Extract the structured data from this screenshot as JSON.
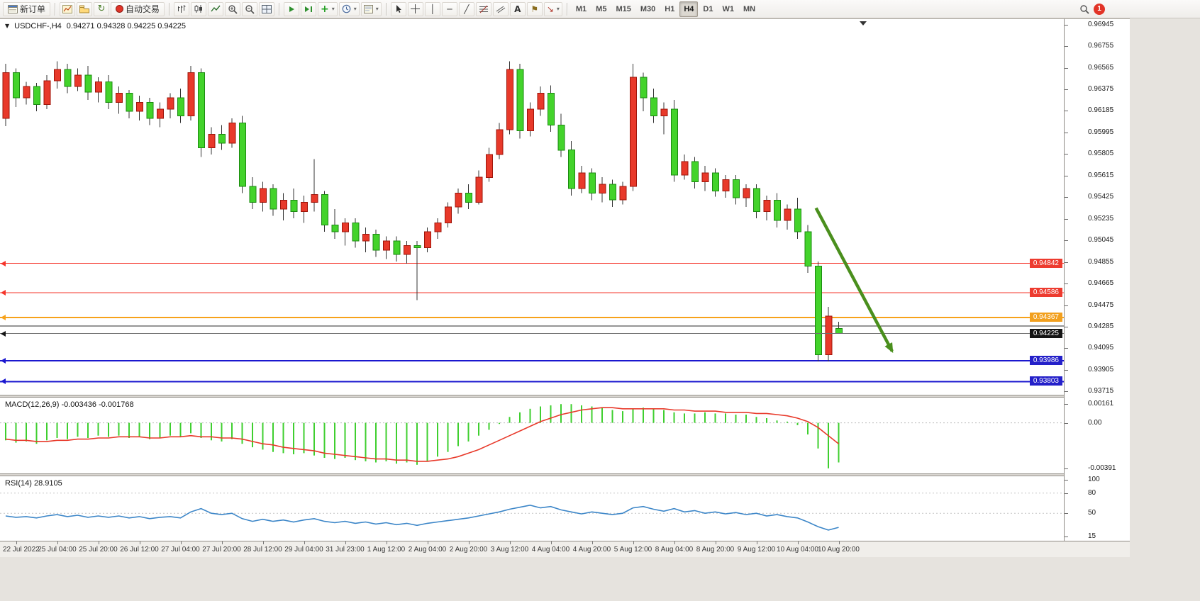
{
  "toolbar": {
    "new_order_label": "新订单",
    "auto_trading_label": "自动交易",
    "timeframes": [
      "M1",
      "M5",
      "M15",
      "M30",
      "H1",
      "H4",
      "D1",
      "W1",
      "MN"
    ],
    "active_timeframe": "H4",
    "notification_count": "1"
  },
  "icons": {
    "refresh": "↻",
    "indicators_plus": "+",
    "vertical_line": "│",
    "horizontal_line": "─",
    "trendline": "╱",
    "text_tool": "A",
    "text_label": "⚑",
    "arrows_tool": "↘",
    "dropdown": "▾",
    "collapse_arrow": "▼"
  },
  "chart_data": {
    "type": "candlestick",
    "title": "USDCHF-,H4",
    "ohlc_text": "0.94271 0.94328 0.94225 0.94225",
    "open": 0.94271,
    "high": 0.94328,
    "low": 0.94225,
    "close": 0.94225,
    "colors": {
      "up": "#e8392a",
      "up_border": "#9e150a",
      "down": "#43d32b",
      "down_border": "#1b8a10",
      "wick": "#333333",
      "background": "#ffffff"
    },
    "price_axis": {
      "max": 0.9698,
      "min": 0.9368,
      "tick_labels": [
        "0.96945",
        "0.96755",
        "0.96565",
        "0.96375",
        "0.96185",
        "0.95995",
        "0.95805",
        "0.95615",
        "0.95425",
        "0.95235",
        "0.95045",
        "0.94855",
        "0.94665",
        "0.94475",
        "0.94285",
        "0.94095",
        "0.93905",
        "0.93715"
      ]
    },
    "bid": {
      "value": 0.94225,
      "label": "0.94225",
      "line_color": "#6f6f6f",
      "box_color": "#151515"
    },
    "levels": [
      {
        "value": 0.94842,
        "label": "0.94842",
        "color": "#f5342a",
        "box_color": "#ed3b2f",
        "width": 1
      },
      {
        "value": 0.94586,
        "label": "0.94586",
        "color": "#f5342a",
        "box_color": "#ed3b2f",
        "width": 1
      },
      {
        "value": 0.94367,
        "label": "0.94367",
        "color": "#f7a21b",
        "box_color": "#f2a01e",
        "width": 2
      },
      {
        "value": 0.9429,
        "label": "",
        "color": "#2b2b2b",
        "box_color": "#2b2b2b",
        "width": 1
      },
      {
        "value": 0.93986,
        "label": "0.93986",
        "color": "#1a17cf",
        "box_color": "#2420c9",
        "width": 2
      },
      {
        "value": 0.93803,
        "label": "0.93803",
        "color": "#1a17cf",
        "box_color": "#2420c9",
        "width": 2
      }
    ],
    "trend_arrow": {
      "from_index": 78.8,
      "from_price": 0.9533,
      "to_index": 86.2,
      "to_price": 0.9407,
      "color": "#4a8f1d"
    },
    "time_labels": [
      "22 Jul 2022",
      "25 Jul 04:00",
      "25 Jul 20:00",
      "26 Jul 12:00",
      "27 Jul 04:00",
      "27 Jul 20:00",
      "28 Jul 12:00",
      "29 Jul 04:00",
      "31 Jul 23:00",
      "1 Aug 12:00",
      "2 Aug 04:00",
      "2 Aug 20:00",
      "3 Aug 12:00",
      "4 Aug 04:00",
      "4 Aug 20:00",
      "5 Aug 12:00",
      "8 Aug 04:00",
      "8 Aug 20:00",
      "9 Aug 12:00",
      "10 Aug 04:00",
      "10 Aug 20:00"
    ],
    "candles": [
      [
        0.9612,
        0.966,
        0.9605,
        0.9652
      ],
      [
        0.9652,
        0.9656,
        0.9622,
        0.963
      ],
      [
        0.963,
        0.9644,
        0.9624,
        0.964
      ],
      [
        0.964,
        0.9643,
        0.9618,
        0.9624
      ],
      [
        0.9624,
        0.965,
        0.962,
        0.9645
      ],
      [
        0.9645,
        0.9662,
        0.9638,
        0.9655
      ],
      [
        0.9655,
        0.966,
        0.9634,
        0.964
      ],
      [
        0.964,
        0.9656,
        0.9636,
        0.965
      ],
      [
        0.965,
        0.9658,
        0.9628,
        0.9635
      ],
      [
        0.9635,
        0.9648,
        0.9626,
        0.9644
      ],
      [
        0.9644,
        0.965,
        0.962,
        0.9626
      ],
      [
        0.9626,
        0.964,
        0.9616,
        0.9634
      ],
      [
        0.9634,
        0.9637,
        0.9612,
        0.9618
      ],
      [
        0.9618,
        0.9632,
        0.961,
        0.9626
      ],
      [
        0.9626,
        0.963,
        0.9606,
        0.9612
      ],
      [
        0.9612,
        0.9626,
        0.9604,
        0.962
      ],
      [
        0.962,
        0.9634,
        0.9612,
        0.963
      ],
      [
        0.963,
        0.9638,
        0.9608,
        0.9614
      ],
      [
        0.9614,
        0.9658,
        0.961,
        0.9652
      ],
      [
        0.9652,
        0.9656,
        0.9578,
        0.9586
      ],
      [
        0.9586,
        0.9604,
        0.958,
        0.9598
      ],
      [
        0.9598,
        0.9606,
        0.9584,
        0.959
      ],
      [
        0.959,
        0.9612,
        0.9586,
        0.9608
      ],
      [
        0.9608,
        0.9614,
        0.9546,
        0.9552
      ],
      [
        0.9552,
        0.956,
        0.9532,
        0.9538
      ],
      [
        0.9538,
        0.9556,
        0.953,
        0.955
      ],
      [
        0.955,
        0.9554,
        0.9526,
        0.9532
      ],
      [
        0.9532,
        0.9546,
        0.9522,
        0.954
      ],
      [
        0.954,
        0.955,
        0.9524,
        0.953
      ],
      [
        0.953,
        0.9544,
        0.952,
        0.9538
      ],
      [
        0.9538,
        0.9576,
        0.953,
        0.9545
      ],
      [
        0.9545,
        0.9548,
        0.9512,
        0.9518
      ],
      [
        0.9518,
        0.9532,
        0.9506,
        0.9512
      ],
      [
        0.9512,
        0.9524,
        0.95,
        0.952
      ],
      [
        0.952,
        0.9524,
        0.9498,
        0.9504
      ],
      [
        0.9504,
        0.9516,
        0.9494,
        0.951
      ],
      [
        0.951,
        0.9514,
        0.949,
        0.9496
      ],
      [
        0.9496,
        0.9508,
        0.9488,
        0.9504
      ],
      [
        0.9504,
        0.9508,
        0.9486,
        0.9492
      ],
      [
        0.9492,
        0.9504,
        0.9484,
        0.95
      ],
      [
        0.95,
        0.9504,
        0.9452,
        0.9498
      ],
      [
        0.9498,
        0.9516,
        0.9494,
        0.9512
      ],
      [
        0.9512,
        0.9524,
        0.9506,
        0.952
      ],
      [
        0.952,
        0.9538,
        0.9516,
        0.9534
      ],
      [
        0.9534,
        0.955,
        0.9528,
        0.9546
      ],
      [
        0.9546,
        0.9554,
        0.9532,
        0.9538
      ],
      [
        0.9538,
        0.9566,
        0.9536,
        0.956
      ],
      [
        0.956,
        0.9586,
        0.9556,
        0.958
      ],
      [
        0.958,
        0.9608,
        0.9576,
        0.9602
      ],
      [
        0.9602,
        0.9662,
        0.9598,
        0.9655
      ],
      [
        0.9655,
        0.966,
        0.9594,
        0.9601
      ],
      [
        0.9601,
        0.9626,
        0.9596,
        0.962
      ],
      [
        0.962,
        0.964,
        0.9614,
        0.9634
      ],
      [
        0.9634,
        0.9641,
        0.96,
        0.9606
      ],
      [
        0.9606,
        0.9616,
        0.9578,
        0.9584
      ],
      [
        0.9584,
        0.9592,
        0.9544,
        0.955
      ],
      [
        0.955,
        0.957,
        0.9546,
        0.9564
      ],
      [
        0.9564,
        0.9568,
        0.954,
        0.9546
      ],
      [
        0.9546,
        0.956,
        0.9538,
        0.9554
      ],
      [
        0.9554,
        0.9558,
        0.9534,
        0.954
      ],
      [
        0.954,
        0.9556,
        0.9536,
        0.9552
      ],
      [
        0.9552,
        0.966,
        0.9548,
        0.9648
      ],
      [
        0.9648,
        0.9652,
        0.9618,
        0.963
      ],
      [
        0.963,
        0.9638,
        0.9608,
        0.9614
      ],
      [
        0.9614,
        0.9626,
        0.9598,
        0.962
      ],
      [
        0.962,
        0.9628,
        0.9556,
        0.9562
      ],
      [
        0.9562,
        0.958,
        0.9558,
        0.9574
      ],
      [
        0.9574,
        0.9578,
        0.955,
        0.9556
      ],
      [
        0.9556,
        0.957,
        0.9548,
        0.9564
      ],
      [
        0.9564,
        0.9568,
        0.9543,
        0.9548
      ],
      [
        0.9548,
        0.9562,
        0.9542,
        0.9558
      ],
      [
        0.9558,
        0.9562,
        0.9536,
        0.9542
      ],
      [
        0.9542,
        0.9554,
        0.9534,
        0.955
      ],
      [
        0.955,
        0.9554,
        0.9524,
        0.953
      ],
      [
        0.953,
        0.9544,
        0.9522,
        0.954
      ],
      [
        0.954,
        0.9546,
        0.9516,
        0.9522
      ],
      [
        0.9522,
        0.9536,
        0.9514,
        0.9532
      ],
      [
        0.9532,
        0.9542,
        0.9506,
        0.9512
      ],
      [
        0.9512,
        0.9518,
        0.9476,
        0.9482
      ],
      [
        0.9482,
        0.9486,
        0.9398,
        0.9404
      ],
      [
        0.9404,
        0.9446,
        0.9398,
        0.9438
      ],
      [
        0.94271,
        0.94328,
        0.94225,
        0.94225
      ]
    ],
    "macd": {
      "label_text": "MACD(12,26,9) -0.003436 -0.001768",
      "current": -0.003436,
      "signal_current": -0.001768,
      "colors": {
        "histogram": "#3fcf2f",
        "signal": "#e8392a"
      },
      "scale": {
        "max": 0.0021,
        "min": -0.0044,
        "labels": [
          {
            "text": "0.00161",
            "value": 0.00161
          },
          {
            "text": "0.00",
            "value": 0
          },
          {
            "text": "-0.00391",
            "value": -0.00391
          }
        ]
      },
      "values": [
        -0.0015,
        -0.0017,
        -0.0016,
        -0.0018,
        -0.0015,
        -0.0013,
        -0.0014,
        -0.0012,
        -0.0013,
        -0.0011,
        -0.0012,
        -0.0011,
        -0.0013,
        -0.0012,
        -0.0014,
        -0.0013,
        -0.0011,
        -0.0012,
        -0.0009,
        -0.0013,
        -0.0015,
        -0.0016,
        -0.0014,
        -0.0018,
        -0.0021,
        -0.0023,
        -0.0025,
        -0.0026,
        -0.0027,
        -0.0026,
        -0.0028,
        -0.003,
        -0.0031,
        -0.003,
        -0.0032,
        -0.0033,
        -0.0034,
        -0.0033,
        -0.0035,
        -0.0034,
        -0.0036,
        -0.0033,
        -0.0029,
        -0.0025,
        -0.002,
        -0.0016,
        -0.0011,
        -0.0006,
        -0.0001,
        0.0005,
        0.0009,
        0.0012,
        0.0014,
        0.0015,
        0.0016,
        0.0016,
        0.0015,
        0.0014,
        0.0013,
        0.0011,
        0.001,
        0.0012,
        0.0013,
        0.0012,
        0.0011,
        0.0009,
        0.0008,
        0.0008,
        0.0009,
        0.0008,
        0.0008,
        0.0007,
        0.0007,
        0.0005,
        0.0004,
        0.0002,
        0.0001,
        -0.0002,
        -0.001,
        -0.0022,
        -0.0039,
        -0.0034
      ],
      "signal": [
        -0.0014,
        -0.0015,
        -0.0015,
        -0.0016,
        -0.0016,
        -0.0015,
        -0.0015,
        -0.0014,
        -0.0014,
        -0.0013,
        -0.0013,
        -0.0012,
        -0.0012,
        -0.0012,
        -0.0013,
        -0.0013,
        -0.0012,
        -0.0012,
        -0.0011,
        -0.0012,
        -0.0012,
        -0.0013,
        -0.0013,
        -0.0014,
        -0.0016,
        -0.0018,
        -0.0019,
        -0.0021,
        -0.0022,
        -0.0023,
        -0.0024,
        -0.0026,
        -0.0027,
        -0.0028,
        -0.0029,
        -0.003,
        -0.0031,
        -0.0031,
        -0.0032,
        -0.0032,
        -0.0033,
        -0.0033,
        -0.0032,
        -0.0031,
        -0.0029,
        -0.0026,
        -0.0023,
        -0.0019,
        -0.0015,
        -0.0011,
        -0.0007,
        -0.0003,
        0.0001,
        0.0004,
        0.0007,
        0.0009,
        0.0011,
        0.0012,
        0.0013,
        0.0013,
        0.0012,
        0.0012,
        0.0012,
        0.0012,
        0.0012,
        0.0011,
        0.0011,
        0.001,
        0.001,
        0.001,
        0.0009,
        0.0009,
        0.0009,
        0.0008,
        0.0008,
        0.0007,
        0.0006,
        0.0004,
        0.0001,
        -0.0004,
        -0.0011,
        -0.0018
      ]
    },
    "rsi": {
      "label_text": "RSI(14) 28.9105",
      "current": 28.9105,
      "color": "#3c86c8",
      "scale": {
        "max": 104,
        "min": 8,
        "labels": [
          {
            "text": "100",
            "value": 100
          },
          {
            "text": "80",
            "value": 80
          },
          {
            "text": "50",
            "value": 50
          },
          {
            "text": "15",
            "value": 15
          }
        ],
        "levels": [
          80,
          50
        ]
      },
      "values": [
        46,
        44,
        45,
        43,
        46,
        48,
        45,
        47,
        44,
        46,
        44,
        46,
        43,
        45,
        42,
        44,
        45,
        43,
        52,
        57,
        50,
        48,
        50,
        42,
        38,
        41,
        38,
        40,
        37,
        40,
        42,
        38,
        36,
        38,
        35,
        37,
        34,
        36,
        33,
        35,
        32,
        35,
        37,
        39,
        41,
        43,
        46,
        49,
        52,
        56,
        59,
        62,
        58,
        60,
        55,
        52,
        49,
        52,
        50,
        48,
        50,
        58,
        60,
        56,
        53,
        57,
        52,
        54,
        50,
        52,
        49,
        51,
        48,
        50,
        46,
        48,
        45,
        43,
        37,
        30,
        25,
        29
      ]
    }
  }
}
